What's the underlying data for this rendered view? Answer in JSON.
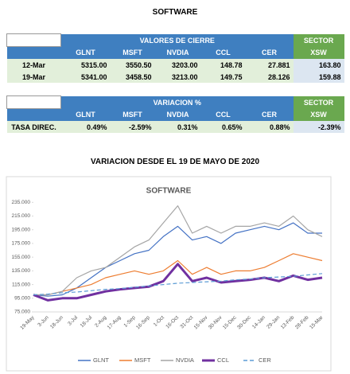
{
  "title": "SOFTWARE",
  "tables": [
    {
      "group_header": "VALORES DE CIERRE",
      "sector_header": "SECTOR",
      "columns": [
        "GLNT",
        "MSFT",
        "NVDIA",
        "CCL",
        "CER",
        "XSW"
      ],
      "rows": [
        [
          "12-Mar",
          "5315.00",
          "3550.50",
          "3203.00",
          "148.78",
          "27.881",
          "163.80"
        ],
        [
          "19-Mar",
          "5341.00",
          "3458.50",
          "3213.00",
          "149.75",
          "28.126",
          "159.88"
        ]
      ]
    },
    {
      "group_header": "VARIACION %",
      "sector_header": "SECTOR",
      "columns": [
        "GLNT",
        "MSFT",
        "NVDIA",
        "CCL",
        "CER",
        "XSW"
      ],
      "rows": [
        [
          "TASA DIREC.",
          "0.49%",
          "-2.59%",
          "0.31%",
          "0.65%",
          "0.88%",
          "-2.39%"
        ]
      ]
    }
  ],
  "chart_heading": "VARIACION DESDE EL 19 DE MAYO DE 2020",
  "chart_data": {
    "type": "line",
    "title": "SOFTWARE",
    "categories": [
      "19-May",
      "3-Jun",
      "18-Jun",
      "3-Jul",
      "18-Jul",
      "2-Aug",
      "17-Aug",
      "1-Sep",
      "16-Sep",
      "1-Oct",
      "16-Oct",
      "31-Oct",
      "15-Nov",
      "30-Nov",
      "15-Dec",
      "30-Dec",
      "14-Jan",
      "29-Jan",
      "13-Feb",
      "28-Feb",
      "15-Mar"
    ],
    "series": [
      {
        "name": "GLNT",
        "color": "#4472c4",
        "values": [
          100,
          98,
          100,
          110,
          125,
          140,
          150,
          160,
          165,
          185,
          200,
          180,
          185,
          175,
          190,
          195,
          200,
          195,
          205,
          190,
          190
        ]
      },
      {
        "name": "MSFT",
        "color": "#ed7d31",
        "values": [
          100,
          100,
          105,
          110,
          115,
          125,
          130,
          135,
          130,
          135,
          150,
          130,
          140,
          130,
          135,
          135,
          140,
          150,
          160,
          155,
          150
        ]
      },
      {
        "name": "NVDIA",
        "color": "#a5a5a5",
        "values": [
          100,
          100,
          105,
          125,
          135,
          140,
          155,
          170,
          180,
          205,
          230,
          190,
          200,
          190,
          200,
          200,
          205,
          200,
          215,
          195,
          185
        ]
      },
      {
        "name": "CCL",
        "color": "#7030a0",
        "width": 3,
        "values": [
          100,
          92,
          95,
          95,
          100,
          105,
          108,
          110,
          112,
          120,
          145,
          120,
          125,
          118,
          120,
          122,
          125,
          120,
          128,
          122,
          125
        ]
      },
      {
        "name": "CER",
        "color": "#5b9bd5",
        "dashed": true,
        "values": [
          100,
          101,
          103,
          104,
          106,
          108,
          109,
          111,
          113,
          115,
          117,
          118,
          119,
          120,
          122,
          123,
          125,
          126,
          127,
          129,
          131
        ]
      }
    ],
    "ylim": [
      75,
      240
    ],
    "yticks": [
      {
        "value": 75,
        "label": "75.000"
      },
      {
        "value": 95,
        "label": "95.000"
      },
      {
        "value": 115,
        "label": "115.000"
      },
      {
        "value": 135,
        "label": "135.000"
      },
      {
        "value": 155,
        "label": "155.000"
      },
      {
        "value": 175,
        "label": "175.000"
      },
      {
        "value": 195,
        "label": "195.000"
      },
      {
        "value": 215,
        "label": "215.000"
      },
      {
        "value": 235,
        "label": "235.000"
      }
    ],
    "grid": false
  }
}
